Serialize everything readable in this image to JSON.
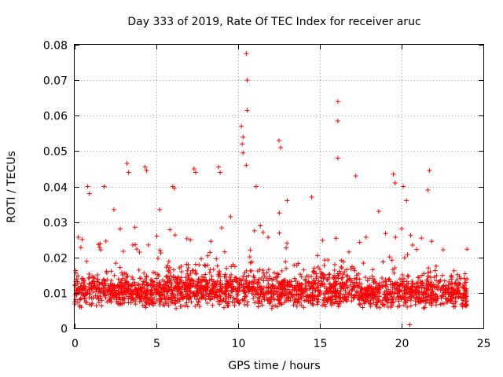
{
  "chart_data": {
    "type": "scatter",
    "title": "Day 333 of 2019, Rate Of TEC Index for receiver aruc",
    "xlabel": "GPS time / hours",
    "ylabel": "ROTI / TECUs",
    "xlim": [
      0,
      25
    ],
    "ylim": [
      0,
      0.08
    ],
    "xticks": [
      0,
      5,
      10,
      15,
      20,
      25
    ],
    "yticks": [
      0,
      0.01,
      0.02,
      0.03,
      0.04,
      0.05,
      0.06,
      0.07,
      0.08
    ],
    "ytick_labels": [
      "0",
      "0.01",
      "0.02",
      "0.03",
      "0.04",
      "0.05",
      "0.06",
      "0.07",
      "0.08"
    ],
    "grid": true,
    "marker": "+",
    "color": "#ff0000",
    "series": [
      {
        "name": "ROTI",
        "x_range": [
          0,
          24
        ],
        "baseline": 0.0085,
        "notable_points": [
          {
            "x": 10.5,
            "y": 0.0775
          },
          {
            "x": 10.55,
            "y": 0.07
          },
          {
            "x": 10.55,
            "y": 0.0615
          },
          {
            "x": 10.2,
            "y": 0.057
          },
          {
            "x": 10.3,
            "y": 0.054
          },
          {
            "x": 10.25,
            "y": 0.052
          },
          {
            "x": 10.3,
            "y": 0.0495
          },
          {
            "x": 10.5,
            "y": 0.046
          },
          {
            "x": 16.1,
            "y": 0.064
          },
          {
            "x": 16.1,
            "y": 0.0585
          },
          {
            "x": 16.1,
            "y": 0.048
          },
          {
            "x": 12.5,
            "y": 0.053
          },
          {
            "x": 12.6,
            "y": 0.051
          },
          {
            "x": 3.2,
            "y": 0.0465
          },
          {
            "x": 3.3,
            "y": 0.044
          },
          {
            "x": 4.3,
            "y": 0.0455
          },
          {
            "x": 4.4,
            "y": 0.0445
          },
          {
            "x": 7.3,
            "y": 0.045
          },
          {
            "x": 7.4,
            "y": 0.044
          },
          {
            "x": 8.8,
            "y": 0.0455
          },
          {
            "x": 8.9,
            "y": 0.044
          },
          {
            "x": 19.5,
            "y": 0.0435
          },
          {
            "x": 19.6,
            "y": 0.041
          },
          {
            "x": 21.7,
            "y": 0.0445
          },
          {
            "x": 21.6,
            "y": 0.039
          },
          {
            "x": 6.0,
            "y": 0.04
          },
          {
            "x": 6.1,
            "y": 0.0395
          },
          {
            "x": 0.8,
            "y": 0.04
          },
          {
            "x": 0.9,
            "y": 0.038
          },
          {
            "x": 1.8,
            "y": 0.04
          },
          {
            "x": 11.1,
            "y": 0.04
          },
          {
            "x": 17.2,
            "y": 0.043
          },
          {
            "x": 20.1,
            "y": 0.04
          },
          {
            "x": 20.3,
            "y": 0.036
          },
          {
            "x": 2.4,
            "y": 0.0335
          },
          {
            "x": 5.2,
            "y": 0.0335
          },
          {
            "x": 13.0,
            "y": 0.036
          },
          {
            "x": 14.5,
            "y": 0.037
          },
          {
            "x": 18.6,
            "y": 0.033
          },
          {
            "x": 20.5,
            "y": 0.001
          }
        ]
      }
    ]
  }
}
